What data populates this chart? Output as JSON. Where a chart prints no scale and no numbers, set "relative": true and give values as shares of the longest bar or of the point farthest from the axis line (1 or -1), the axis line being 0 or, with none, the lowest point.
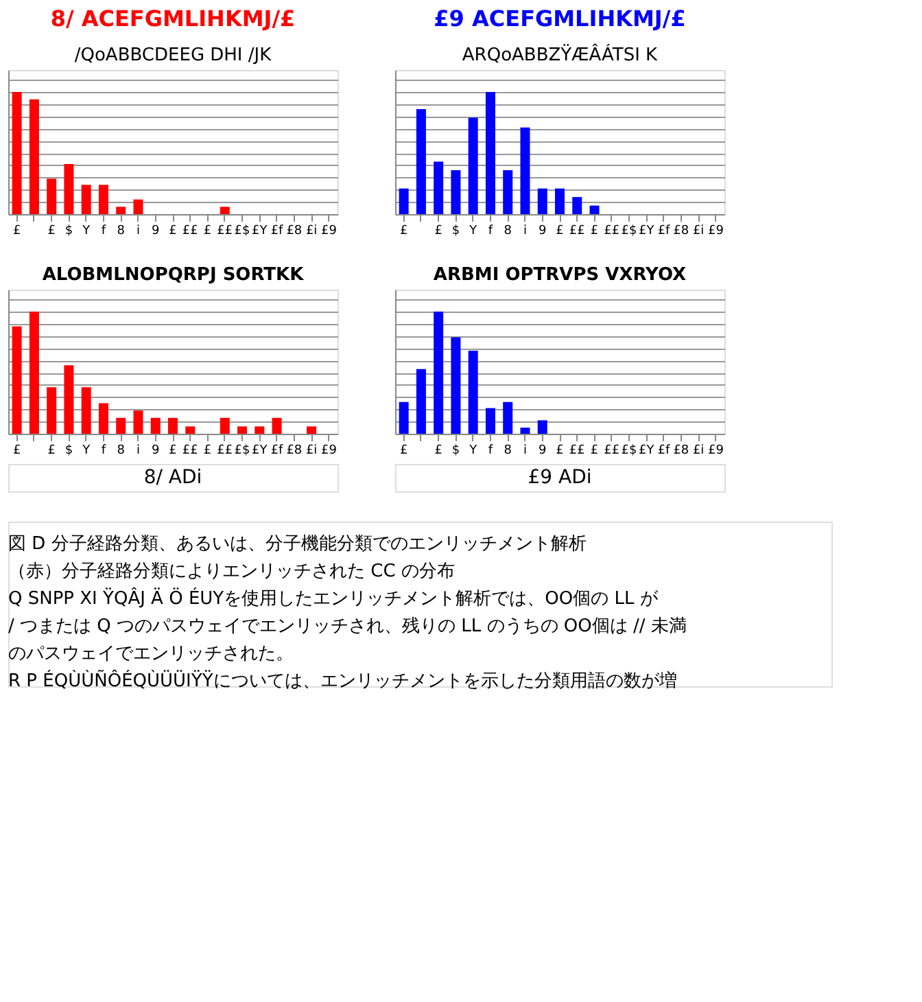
{
  "chart_data": [
    {
      "type": "bar",
      "relative": true,
      "annotations": [
        "8/ ACEFGMLIHKMJ/£"
      ],
      "title": "/QoABBCDEEG DHI /JK",
      "categories": [
        "£",
        null,
        "£",
        "$",
        "Y",
        "f",
        "8",
        "i",
        "9",
        "£",
        "££",
        "£",
        "££",
        "£$",
        "£Y",
        "£f",
        "£8",
        "£i",
        "£9"
      ],
      "series": [
        {
          "color": "#ff0000",
          "values": [
            1,
            0.94,
            0.29,
            0.41,
            0.24,
            0.24,
            0.06,
            0.12,
            0,
            0,
            0,
            0,
            0.06,
            0,
            0,
            0,
            0,
            0,
            0
          ]
        }
      ],
      "grid": "y"
    },
    {
      "type": "bar",
      "relative": true,
      "annotations": [
        "£9 ACEFGMLIHKMJ/£"
      ],
      "title": "ARQoABBZŸÆÂÁTSI K",
      "categories": [
        "£",
        null,
        "£",
        "$",
        "Y",
        "f",
        "8",
        "i",
        "9",
        "£",
        "££",
        "£",
        "££",
        "£$",
        "£Y",
        "£f",
        "£8",
        "£i",
        "£9"
      ],
      "series": [
        {
          "color": "#0000ff",
          "values": [
            0.21,
            0.86,
            0.43,
            0.36,
            0.79,
            1,
            0.36,
            0.71,
            0.21,
            0.21,
            0.14,
            0.07,
            0,
            0,
            0,
            0,
            0,
            0,
            0
          ]
        }
      ],
      "grid": "y"
    },
    {
      "type": "bar",
      "relative": true,
      "title": "ALOBMLNOPQRPJ SORTKK",
      "annotations": [
        "8/ ADi"
      ],
      "categories": [
        "£",
        null,
        "£",
        "$",
        "Y",
        "f",
        "8",
        "i",
        "9",
        "£",
        "££",
        "£",
        "££",
        "£$",
        "£Y",
        "£f",
        "£8",
        "£i",
        "£9"
      ],
      "series": [
        {
          "color": "#ff0000",
          "values": [
            0.88,
            1,
            0.38,
            0.56,
            0.38,
            0.25,
            0.13,
            0.19,
            0.13,
            0.13,
            0.06,
            0,
            0.13,
            0.06,
            0.06,
            0.13,
            0,
            0.06,
            0
          ]
        }
      ],
      "grid": "y"
    },
    {
      "type": "bar",
      "relative": true,
      "title": "ARBMI OPTRVPS VXRYOX",
      "annotations": [
        "£9 ADi"
      ],
      "categories": [
        "£",
        null,
        "£",
        "$",
        "Y",
        "f",
        "8",
        "i",
        "9",
        "£",
        "££",
        "£",
        "££",
        "£$",
        "£Y",
        "£f",
        "£8",
        "£i",
        "£9"
      ],
      "series": [
        {
          "color": "#0000ff",
          "values": [
            0.26,
            0.53,
            1,
            0.79,
            0.68,
            0.21,
            0.26,
            0.05,
            0.11,
            0,
            0,
            0,
            0,
            0,
            0,
            0,
            0,
            0,
            0
          ]
        }
      ],
      "grid": "y"
    },
    {
      "type": "other",
      "annotations": [
        "図 D 分子経路分類、あるいは、分子機能分類でのエンリッチメント解析",
        "（赤）分子経路分類によりエンリッチされた CC の分布",
        "Q SNPP XI ŸQÂJ Ä Ö ÉUYを使用したエンリッチメント解析では、OO個の LL が",
        "/ つまたは Q つのパスウェイでエンリッチされ、残りの LL のうちの OO個は // 未満",
        "のパスウェイでエンリッチされた。",
        "R P ÉQÙÙÑÔÉQÙÜÜIŸŸについては、エンリッチメントを示した分類用語の数が増"
      ]
    }
  ]
}
